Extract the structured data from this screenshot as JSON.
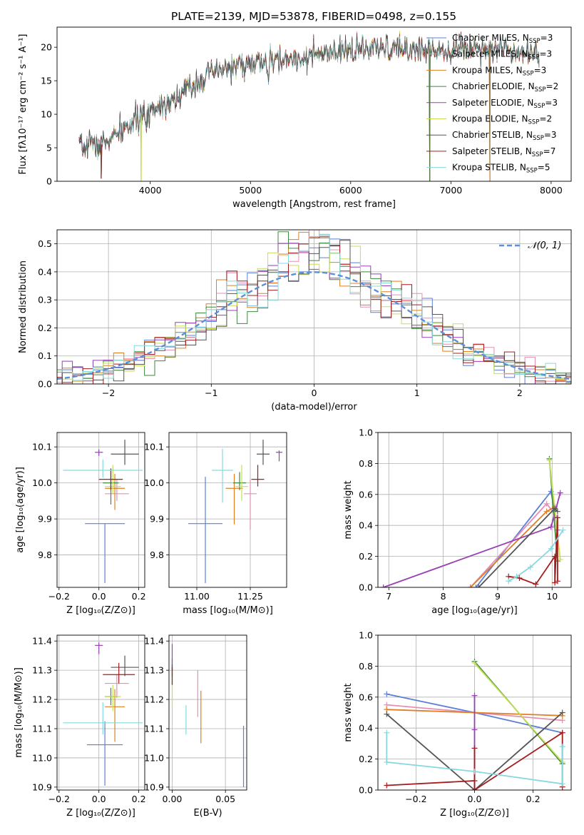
{
  "figure": {
    "title": "PLATE=2139, MJD=53878, FIBERID=0498, z=0.155"
  },
  "colors": {
    "Chabrier MILES": "#5c7fd6",
    "Salpeter MILES": "#e58fb5",
    "Kroupa MILES": "#e07f22",
    "Chabrier ELODIE": "#3d8a3d",
    "Salpeter ELODIE": "#9a3fb5",
    "Kroupa ELODIE": "#c6de52",
    "Chabrier STELIB": "#555555",
    "Salpeter STELIB": "#a61c1c",
    "Kroupa STELIB": "#86d9de",
    "normal": "#5b8fd9",
    "grid": "#b0b0b0"
  },
  "chart_data": [
    {
      "id": "spectrum",
      "type": "line",
      "title": "PLATE=2139, MJD=53878, FIBERID=0498, z=0.155",
      "xlabel": "wavelength [Angstrom, rest frame]",
      "ylabel": "Flux [fλ10⁻¹⁷ erg cm⁻² s⁻¹ A⁻¹]",
      "xlim": [
        3070,
        8200
      ],
      "ylim": [
        0,
        23
      ],
      "xticks": [
        4000,
        5000,
        6000,
        7000,
        8000
      ],
      "yticks": [
        0,
        5,
        10,
        15,
        20
      ],
      "grid": false,
      "legend": "top-right",
      "legend_entries": [
        {
          "label": "Chabrier MILES, N",
          "sub": "SSP",
          "suffix": "=3",
          "model": "Chabrier MILES"
        },
        {
          "label": "Salpeter MILES, N",
          "sub": "SSP",
          "suffix": "=3",
          "model": "Salpeter MILES"
        },
        {
          "label": "Kroupa MILES, N",
          "sub": "SSP",
          "suffix": "=3",
          "model": "Kroupa MILES"
        },
        {
          "label": "Chabrier ELODIE, N",
          "sub": "SSP",
          "suffix": "=2",
          "model": "Chabrier ELODIE"
        },
        {
          "label": "Salpeter ELODIE, N",
          "sub": "SSP",
          "suffix": "=3",
          "model": "Salpeter ELODIE"
        },
        {
          "label": "Kroupa ELODIE, N",
          "sub": "SSP",
          "suffix": "=2",
          "model": "Kroupa ELODIE"
        },
        {
          "label": "Chabrier STELIB, N",
          "sub": "SSP",
          "suffix": "=3",
          "model": "Chabrier STELIB"
        },
        {
          "label": "Salpeter STELIB, N",
          "sub": "SSP",
          "suffix": "=7",
          "model": "Salpeter STELIB"
        },
        {
          "label": "Kroupa STELIB, N",
          "sub": "SSP",
          "suffix": "=5",
          "model": "Kroupa STELIB"
        }
      ],
      "continuum": {
        "x": [
          3300,
          3500,
          3700,
          3900,
          4000,
          4200,
          4400,
          4600,
          4800,
          5000,
          5200,
          5400,
          5600,
          5800,
          6000,
          6200,
          6400,
          6600,
          6800,
          7000,
          7200,
          7400,
          7600,
          7800
        ],
        "y": [
          5.0,
          5.4,
          7.2,
          9.6,
          10.8,
          12.0,
          14.2,
          16.0,
          17.0,
          17.5,
          17.8,
          18.2,
          18.7,
          18.9,
          19.6,
          19.6,
          19.8,
          19.6,
          19.8,
          19.7,
          19.9,
          20.0,
          19.6,
          19.4
        ]
      },
      "spikes": [
        {
          "x": 3510,
          "y": 0.4
        },
        {
          "x": 3910,
          "y": 0
        },
        {
          "x": 6790,
          "y": 0
        },
        {
          "x": 7390,
          "y": 0
        }
      ]
    },
    {
      "id": "residuals",
      "type": "histogram",
      "xlabel": "(data-model)/error",
      "ylabel": "Normed distribution",
      "xlim": [
        -2.5,
        2.5
      ],
      "ylim": [
        0,
        0.55
      ],
      "xticks": [
        -2,
        -1,
        0,
        1,
        2
      ],
      "yticks": [
        0.0,
        0.1,
        0.2,
        0.3,
        0.4,
        0.5
      ],
      "grid": true,
      "legend": "top-right",
      "legend_label": "𝒩(0, 1)",
      "bin_width": 0.1
    },
    {
      "id": "age_vs_Z",
      "type": "scatter",
      "xlabel": "Z [log₁₀(Z/Z⊙)]",
      "ylabel": "age  [log₁₀(age/yr)]",
      "xlim": [
        -0.21,
        0.23
      ],
      "ylim": [
        9.71,
        10.14
      ],
      "xticks": [
        -0.2,
        0.0,
        0.2
      ],
      "yticks": [
        9.8,
        9.9,
        10.0,
        10.1
      ],
      "grid": true,
      "points": [
        {
          "model": "Chabrier MILES",
          "x": 0.03,
          "y": 9.887,
          "xerr": 0.1,
          "yerr": [
            0.165,
            0.0
          ]
        },
        {
          "model": "Salpeter MILES",
          "x": 0.09,
          "y": 9.97,
          "xerr": 0.06,
          "yerr": [
            0.02,
            0.04
          ]
        },
        {
          "model": "Kroupa MILES",
          "x": 0.08,
          "y": 9.985,
          "xerr": 0.05,
          "yerr": [
            0.06,
            0.04
          ]
        },
        {
          "model": "Chabrier ELODIE",
          "x": 0.06,
          "y": 10.0,
          "xerr": 0.04,
          "yerr": [
            0.06,
            0.04
          ]
        },
        {
          "model": "Salpeter ELODIE",
          "x": 0.0,
          "y": 10.085,
          "xerr": 0.02,
          "yerr": [
            0.01,
            0.008
          ]
        },
        {
          "model": "Kroupa ELODIE",
          "x": 0.07,
          "y": 9.99,
          "xerr": 0.04,
          "yerr": [
            0.02,
            0.06
          ]
        },
        {
          "model": "Chabrier STELIB",
          "x": 0.13,
          "y": 10.08,
          "xerr": 0.07,
          "yerr": [
            0.03,
            0.04
          ]
        },
        {
          "model": "Salpeter STELIB",
          "x": 0.06,
          "y": 10.01,
          "xerr": 0.06,
          "yerr": [
            0.03,
            0.03
          ]
        },
        {
          "model": "Kroupa STELIB",
          "x": 0.02,
          "y": 10.035,
          "xerr": 0.2,
          "yerr": [
            0.02,
            0.03
          ]
        }
      ]
    },
    {
      "id": "age_vs_mass",
      "type": "scatter",
      "xlabel": "mass [log₁₀(M/M⊙)]",
      "ylabel": "",
      "xlim": [
        10.87,
        11.42
      ],
      "ylim": [
        9.71,
        10.14
      ],
      "xticks": [
        11.0,
        11.25
      ],
      "xticklabels": [
        "11.00",
        "11.25"
      ],
      "yticks": [
        9.8,
        9.9,
        10.0,
        10.1
      ],
      "grid": true,
      "points": [
        {
          "model": "Chabrier MILES",
          "x": 11.04,
          "y": 9.887,
          "xerr": 0.08,
          "yerr": [
            0.165,
            0.13
          ]
        },
        {
          "model": "Salpeter MILES",
          "x": 11.25,
          "y": 9.97,
          "xerr": 0.03,
          "yerr": [
            0.1,
            0.04
          ]
        },
        {
          "model": "Kroupa MILES",
          "x": 11.175,
          "y": 9.985,
          "xerr": 0.04,
          "yerr": [
            0.1,
            0.04
          ]
        },
        {
          "model": "Chabrier ELODIE",
          "x": 11.2,
          "y": 10.0,
          "xerr": 0.03,
          "yerr": [
            0.02,
            0.03
          ]
        },
        {
          "model": "Salpeter ELODIE",
          "x": 11.385,
          "y": 10.085,
          "xerr": 0.015,
          "yerr": [
            0.025,
            0.005
          ]
        },
        {
          "model": "Kroupa ELODIE",
          "x": 11.21,
          "y": 9.99,
          "xerr": 0.03,
          "yerr": [
            0.04,
            0.06
          ]
        },
        {
          "model": "Chabrier STELIB",
          "x": 11.31,
          "y": 10.08,
          "xerr": 0.03,
          "yerr": [
            0.03,
            0.04
          ]
        },
        {
          "model": "Salpeter STELIB",
          "x": 11.285,
          "y": 10.01,
          "xerr": 0.03,
          "yerr": [
            0.02,
            0.04
          ]
        },
        {
          "model": "Kroupa STELIB",
          "x": 11.12,
          "y": 10.035,
          "xerr": 0.05,
          "yerr": [
            0.09,
            0.06
          ]
        }
      ]
    },
    {
      "id": "weight_vs_age",
      "type": "line",
      "xlabel": "age  [log₁₀(age/yr)]",
      "ylabel": "mass weight",
      "xlim": [
        6.8,
        10.35
      ],
      "ylim": [
        0,
        1
      ],
      "xticks": [
        7,
        8,
        9,
        10
      ],
      "yticks": [
        0.0,
        0.2,
        0.4,
        0.6,
        0.8,
        1.0
      ],
      "grid": true,
      "series": [
        {
          "model": "Chabrier MILES",
          "x": [
            8.6,
            9.98,
            10.1
          ],
          "y": [
            0.0,
            0.62,
            0.37
          ]
        },
        {
          "model": "Salpeter MILES",
          "x": [
            8.5,
            9.9,
            10.1
          ],
          "y": [
            0.0,
            0.54,
            0.45
          ]
        },
        {
          "model": "Kroupa MILES",
          "x": [
            8.5,
            9.9,
            10.05
          ],
          "y": [
            0.0,
            0.49,
            0.52
          ]
        },
        {
          "model": "Chabrier ELODIE",
          "x": [
            9.95,
            10.1
          ],
          "y": [
            0.83,
            0.17
          ]
        },
        {
          "model": "Salpeter ELODIE",
          "x": [
            6.9,
            9.98,
            10.15
          ],
          "y": [
            0.0,
            0.39,
            0.61
          ]
        },
        {
          "model": "Kroupa ELODIE",
          "x": [
            9.95,
            10.15
          ],
          "y": [
            0.82,
            0.18
          ]
        },
        {
          "model": "Chabrier STELIB",
          "x": [
            8.65,
            10.05,
            10.1
          ],
          "y": [
            0.0,
            0.51,
            0.49
          ]
        },
        {
          "model": "Salpeter STELIB",
          "x": [
            9.2,
            9.4,
            9.7,
            10.05,
            10.05,
            10.1,
            10.1
          ],
          "y": [
            0.07,
            0.06,
            0.02,
            0.2,
            0.03,
            0.45,
            0.04
          ]
        },
        {
          "model": "Kroupa STELIB",
          "x": [
            9.2,
            9.35,
            9.6,
            9.98,
            10.2
          ],
          "y": [
            0.04,
            0.07,
            0.13,
            0.25,
            0.37
          ]
        }
      ]
    },
    {
      "id": "mass_vs_Z",
      "type": "scatter",
      "xlabel": "Z [log₁₀(Z/Z⊙)]",
      "ylabel": "mass [log₁₀(M/M⊙)]",
      "xlim": [
        -0.21,
        0.23
      ],
      "ylim": [
        10.89,
        11.42
      ],
      "xticks": [
        -0.2,
        0.0,
        0.2
      ],
      "yticks": [
        10.9,
        11.0,
        11.1,
        11.2,
        11.3,
        11.4
      ],
      "grid": true,
      "points": [
        {
          "model": "Chabrier MILES",
          "x": 0.03,
          "y": 11.045,
          "xerr": 0.09,
          "yerr": [
            0.14,
            0.08
          ]
        },
        {
          "model": "Salpeter MILES",
          "x": 0.09,
          "y": 11.255,
          "xerr": 0.06,
          "yerr": [
            0.05,
            0.03
          ]
        },
        {
          "model": "Kroupa MILES",
          "x": 0.08,
          "y": 11.175,
          "xerr": 0.05,
          "yerr": [
            0.12,
            0.06
          ]
        },
        {
          "model": "Chabrier ELODIE",
          "x": 0.06,
          "y": 11.21,
          "xerr": 0.03,
          "yerr": [
            0.03,
            0.03
          ]
        },
        {
          "model": "Salpeter ELODIE",
          "x": 0.0,
          "y": 11.385,
          "xerr": 0.02,
          "yerr": [
            0.03,
            0.01
          ]
        },
        {
          "model": "Kroupa ELODIE",
          "x": 0.07,
          "y": 11.21,
          "xerr": 0.04,
          "yerr": [
            0.05,
            0.04
          ]
        },
        {
          "model": "Chabrier STELIB",
          "x": 0.13,
          "y": 11.31,
          "xerr": 0.07,
          "yerr": [
            0.03,
            0.04
          ]
        },
        {
          "model": "Salpeter STELIB",
          "x": 0.1,
          "y": 11.285,
          "xerr": 0.08,
          "yerr": [
            0.03,
            0.04
          ]
        },
        {
          "model": "Kroupa STELIB",
          "x": 0.02,
          "y": 11.12,
          "xerr": 0.2,
          "yerr": [
            0.04,
            0.07
          ]
        }
      ]
    },
    {
      "id": "mass_vs_ebv",
      "type": "scatter",
      "xlabel": "E(B-V)",
      "ylabel": "",
      "xlim": [
        -0.003,
        0.07
      ],
      "ylim": [
        10.89,
        11.42
      ],
      "xticks": [
        0.0,
        0.05
      ],
      "xticklabels": [
        "0.00",
        "0.05"
      ],
      "yticks": [
        10.9,
        11.0,
        11.1,
        11.2,
        11.3,
        11.4
      ],
      "grid": true,
      "points": [
        {
          "model": "Chabrier MILES",
          "x": 0.067,
          "y": 11.0,
          "xerr": 0,
          "yerr": [
            0.1,
            0.11
          ]
        },
        {
          "model": "Salpeter MILES",
          "x": 0.024,
          "y": 11.2,
          "xerr": 0,
          "yerr": [
            0.06,
            0.1
          ]
        },
        {
          "model": "Kroupa MILES",
          "x": 0.027,
          "y": 11.14,
          "xerr": 0,
          "yerr": [
            0.09,
            0.09
          ]
        },
        {
          "model": "Chabrier ELODIE",
          "x": 0.0,
          "y": 11.3,
          "xerr": 0,
          "yerr": [
            0.05,
            0.04
          ]
        },
        {
          "model": "Salpeter ELODIE",
          "x": 0.0,
          "y": 11.35,
          "xerr": 0,
          "yerr": [
            0.05,
            0.04
          ]
        },
        {
          "model": "Kroupa ELODIE",
          "x": 0.0,
          "y": 11.21,
          "xerr": 0,
          "yerr": [
            0.04,
            0.05
          ]
        },
        {
          "model": "Chabrier STELIB",
          "x": 0.0,
          "y": 11.3,
          "xerr": 0,
          "yerr": [
            0.02,
            0.02
          ]
        },
        {
          "model": "Salpeter STELIB",
          "x": 0.0,
          "y": 11.28,
          "xerr": 0,
          "yerr": [
            0.03,
            0.03
          ]
        },
        {
          "model": "Kroupa STELIB",
          "x": 0.013,
          "y": 11.13,
          "xerr": 0,
          "yerr": [
            0.05,
            0.05
          ]
        }
      ]
    },
    {
      "id": "weight_vs_Z",
      "type": "line",
      "xlabel": "Z [log₁₀(Z/Z⊙)]",
      "ylabel": "mass weight",
      "xlim": [
        -0.33,
        0.33
      ],
      "ylim": [
        0,
        1
      ],
      "xticks": [
        -0.2,
        0.0,
        0.2
      ],
      "yticks": [
        0.0,
        0.2,
        0.4,
        0.6,
        0.8,
        1.0
      ],
      "grid": true,
      "series": [
        {
          "model": "Chabrier MILES",
          "x": [
            -0.3,
            0.0,
            0.3
          ],
          "y": [
            0.62,
            0.5,
            0.37
          ]
        },
        {
          "model": "Salpeter MILES",
          "x": [
            -0.3,
            0.0,
            0.3
          ],
          "y": [
            0.55,
            0.5,
            0.45
          ]
        },
        {
          "model": "Kroupa MILES",
          "x": [
            -0.3,
            0.0,
            0.3
          ],
          "y": [
            0.52,
            0.5,
            0.48
          ]
        },
        {
          "model": "Chabrier ELODIE",
          "x": [
            0.0,
            0.3
          ],
          "y": [
            0.83,
            0.17
          ]
        },
        {
          "model": "Salpeter ELODIE",
          "x": [
            0.0,
            0.0,
            0.0
          ],
          "y": [
            0.61,
            0.39,
            0.0
          ]
        },
        {
          "model": "Kroupa ELODIE",
          "x": [
            0.0,
            0.3
          ],
          "y": [
            0.82,
            0.18
          ]
        },
        {
          "model": "Chabrier STELIB",
          "x": [
            -0.3,
            0.0,
            0.3
          ],
          "y": [
            0.49,
            0.0,
            0.5
          ]
        },
        {
          "model": "Salpeter STELIB",
          "x": [
            -0.3,
            0.0,
            0.0,
            0.0,
            0.3,
            0.3
          ],
          "y": [
            0.03,
            0.06,
            0.27,
            0.0,
            0.37,
            0.02
          ]
        },
        {
          "model": "Kroupa STELIB",
          "x": [
            -0.3,
            -0.3,
            0.0,
            0.3,
            0.3
          ],
          "y": [
            0.37,
            0.18,
            0.12,
            0.04,
            0.28
          ]
        }
      ]
    }
  ]
}
